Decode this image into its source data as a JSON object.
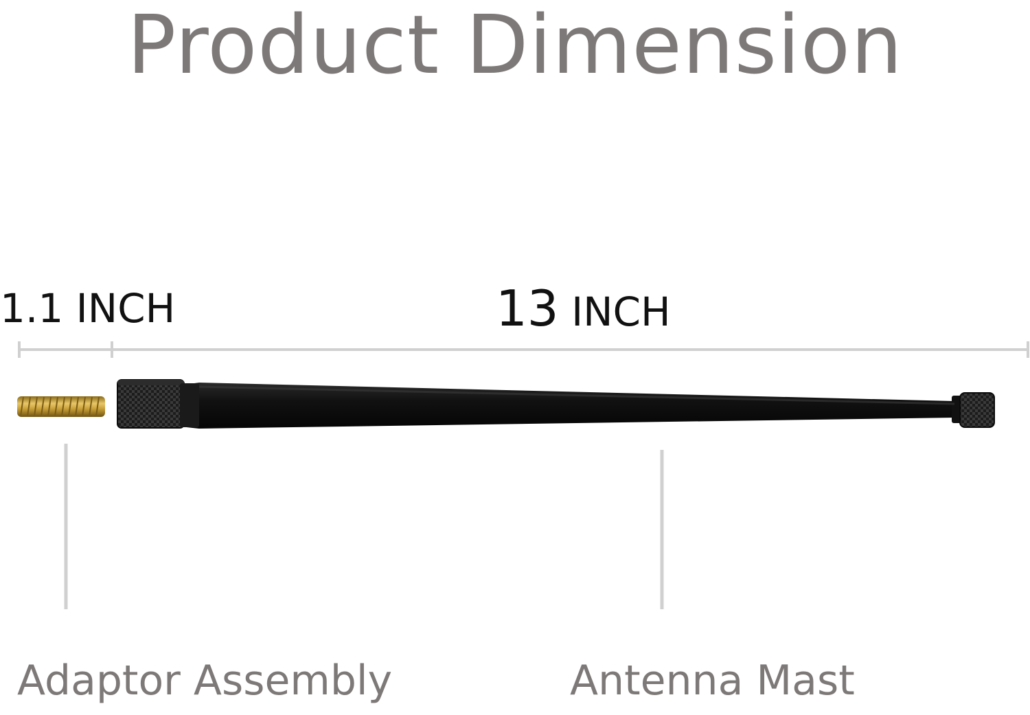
{
  "title": "Product Dimension",
  "dimensions": {
    "adaptor_length": "1.1 INCH",
    "mast_length_number": "13",
    "mast_length_unit": "INCH"
  },
  "parts": {
    "adaptor": "Adaptor Assembly",
    "mast": "Antenna Mast"
  },
  "colors": {
    "heading_gray": "#7d7978",
    "guide_line_gray": "#d0d0d0",
    "mast_black": "#151515",
    "brass": "#c9a13a"
  }
}
